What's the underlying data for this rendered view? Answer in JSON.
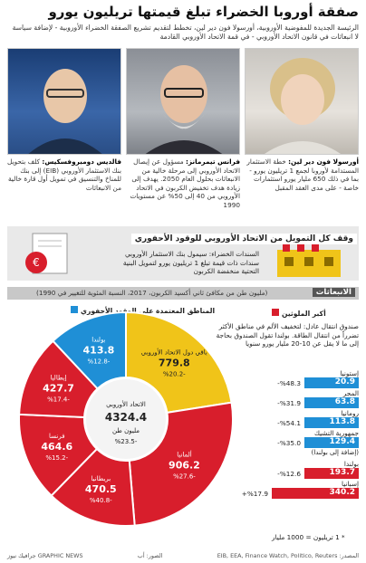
{
  "header": {
    "title": "صفقة أوروبا الخضراء تبلغ قيمتها تريليون يورو",
    "subtitle": "الرئيسة الجديدة للمفوضية الأوروبية، أورسولا فون دير لين، تخطط لتقديم تشريع الصفقة الخضراء الأوروبية - لإضافة سياسة لا انبعاثات في قانون الاتحاد الأوروبي - في قمة الاتحاد الأوروبي القادمة"
  },
  "people": [
    {
      "name": "فالديس دومبروفسكيس:",
      "role": "كلف بتحويل بنك الاستثمار الأوروبي (EIB) إلى بنك للمناخ والتنسيق في تمويل أول قارة خالية من الانبعاثات"
    },
    {
      "name": "فرانس تيمرمانز:",
      "role": "مسؤول عن إيصال الاتحاد الأوروبي إلى مرحلة خالية من الانبعاثات بحلول العام 2050. يهدف إلى زيادة هدف تخفيض الكربون في الاتحاد الأوروبي من 40 إلى 50% عن مستويات 1990"
    },
    {
      "name": "أورسولا فون دير لين:",
      "role": "خطة الاستثمار المستدامة لأوروبا لجمع 1 تريليون يورو - بما في ذلك 650 مليار يورو استثمارات خاصة - على مدى العقد المقبل"
    }
  ],
  "financing": {
    "title": "وقف كل التمويل من الاتحاد الأوروبي للوقود الأحفوري",
    "text": "السندات الخضراء: سيمول بنك الاستثمار الأوروبي سندات ذات قيمة تبلغ 1 تريليون يورو لتمويل البنية التحتية منخفضة الكربون"
  },
  "emissions": {
    "title": "الانبعاثات",
    "subtitle": "(مليون طن من مكافئ ثاني أكسيد الكربون، 2017، النسبة المئوية للتغيير في 1990)",
    "legend_red": "أكبر الملوثين",
    "legend_blue": "المناطق المعتمدة على الوقود الأحفوري",
    "fund_text": "صندوق انتقال عادل: لتخفيف الألم في مناطق الأكثر تضرراً من انتقال الطاقة. بولندا تقول الصندوق بحاجة إلى ما لا يقل عن 10-20 مليار يورو سنويا"
  },
  "chart_data": {
    "type": "pie",
    "title": "الانبعاثات",
    "center": {
      "label": "الاتحاد الأوروبي",
      "value": 4324.4,
      "unit": "مليون طن",
      "change": "%23.5-"
    },
    "slices": [
      {
        "name": "ألمانيا",
        "value": 906.2,
        "change": "%27.6-",
        "group": "red"
      },
      {
        "name": "بريطانيا",
        "value": 470.5,
        "change": "%40.8-",
        "group": "red"
      },
      {
        "name": "فرنسا",
        "value": 464.6,
        "change": "%15.2-",
        "group": "red"
      },
      {
        "name": "إيطاليا",
        "value": 427.7,
        "change": "%17.4-",
        "group": "red"
      },
      {
        "name": "بولندا",
        "value": 413.8,
        "change": "%12.8-",
        "group": "blue"
      },
      {
        "name": "باقي دول الاتحاد الأوروبي",
        "value": 779.8,
        "change": "%20.2-",
        "group": "yellow"
      }
    ],
    "bars": [
      {
        "name": "إستونيا",
        "value": 20.9,
        "change": "%48.3-"
      },
      {
        "name": "المجر",
        "value": 63.8,
        "change": "%31.9-"
      },
      {
        "name": "رومانيا",
        "value": 113.8,
        "change": "%54.1-"
      },
      {
        "name": "جمهورية التشيك",
        "value": 129.4,
        "change": "%35.0-"
      },
      {
        "name": "بولندا",
        "value": 193.7,
        "change": "%12.6-"
      },
      {
        "name": "إسبانيا",
        "value": 340.2,
        "change": "%17.9+"
      }
    ],
    "note": "(إضافة إلى بولندا)",
    "scale_note": "* 1 تريليون = 1000 مليار"
  },
  "footer": {
    "credit": "GRAPHIC NEWS جرافيك نيوز",
    "photos": "الصور: أب",
    "sources": "المصدر: EIB, EEA, Finance Watch, Politico, Reuters"
  },
  "colors": {
    "red": "#d81e2c",
    "blue": "#1f8fd6",
    "yellow": "#f0c419",
    "dark": "#555555"
  }
}
